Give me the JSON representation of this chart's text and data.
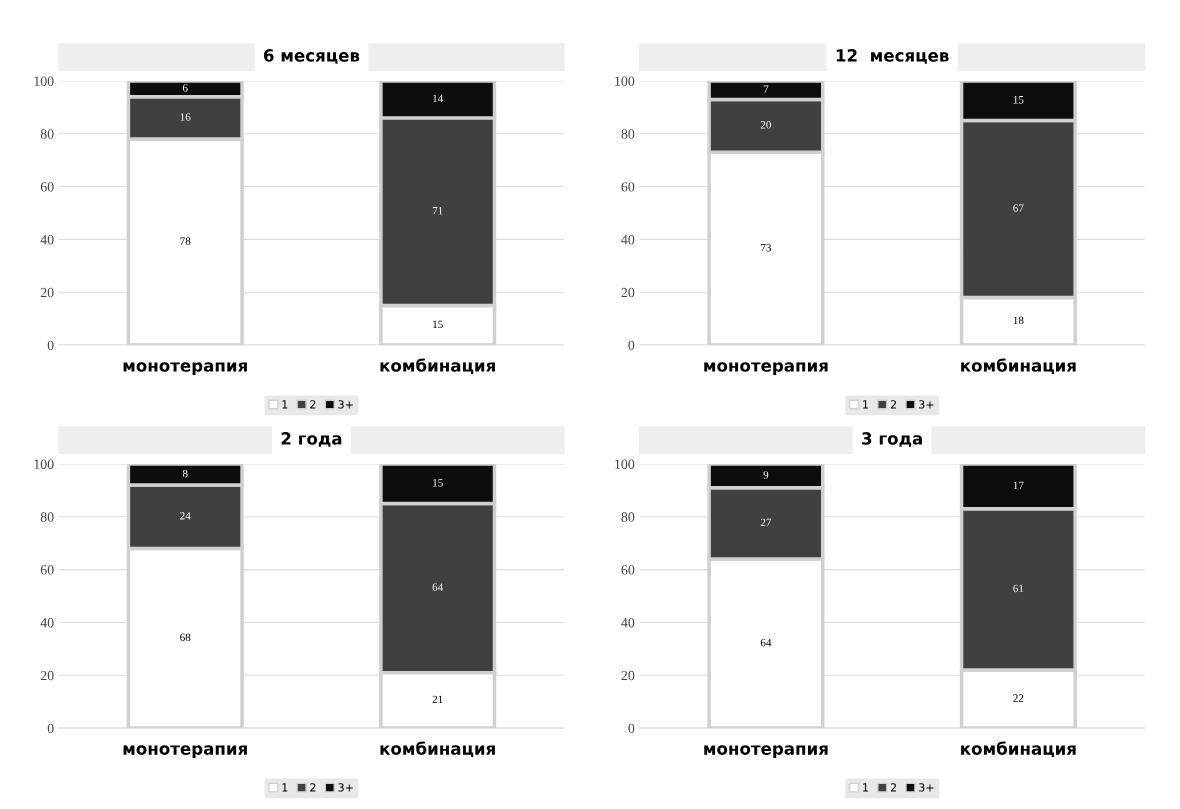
{
  "chart_data": [
    {
      "type": "bar",
      "title": "6 месяцев",
      "categories": [
        "монотерапия",
        "комбинация"
      ],
      "stacked": true,
      "ylim": [
        0,
        100
      ],
      "yticks": [
        0,
        20,
        40,
        60,
        80,
        100
      ],
      "grid": "y",
      "legend": "bottom",
      "data_labels": true,
      "series": [
        {
          "name": "1",
          "color": "#ffffff",
          "values": [
            78,
            15
          ]
        },
        {
          "name": "2",
          "color": "#404040",
          "values": [
            16,
            71
          ]
        },
        {
          "name": "3+",
          "color": "#0d0d0d",
          "values": [
            6,
            14
          ]
        }
      ]
    },
    {
      "type": "bar",
      "title": "12  месяцев",
      "categories": [
        "монотерапия",
        "комбинация"
      ],
      "stacked": true,
      "ylim": [
        0,
        100
      ],
      "yticks": [
        0,
        20,
        40,
        60,
        80,
        100
      ],
      "grid": "y",
      "legend": "bottom",
      "data_labels": true,
      "series": [
        {
          "name": "1",
          "color": "#ffffff",
          "values": [
            73,
            18
          ]
        },
        {
          "name": "2",
          "color": "#404040",
          "values": [
            20,
            67
          ]
        },
        {
          "name": "3+",
          "color": "#0d0d0d",
          "values": [
            7,
            15
          ]
        }
      ]
    },
    {
      "type": "bar",
      "title": "2 года",
      "categories": [
        "монотерапия",
        "комбинация"
      ],
      "stacked": true,
      "ylim": [
        0,
        100
      ],
      "yticks": [
        0,
        20,
        40,
        60,
        80,
        100
      ],
      "grid": "y",
      "legend": "bottom",
      "data_labels": true,
      "series": [
        {
          "name": "1",
          "color": "#ffffff",
          "values": [
            68,
            21
          ]
        },
        {
          "name": "2",
          "color": "#404040",
          "values": [
            24,
            64
          ]
        },
        {
          "name": "3+",
          "color": "#0d0d0d",
          "values": [
            8,
            15
          ]
        }
      ]
    },
    {
      "type": "bar",
      "title": "3 года",
      "categories": [
        "монотерапия",
        "комбинация"
      ],
      "stacked": true,
      "ylim": [
        0,
        100
      ],
      "yticks": [
        0,
        20,
        40,
        60,
        80,
        100
      ],
      "grid": "y",
      "legend": "bottom",
      "data_labels": true,
      "series": [
        {
          "name": "1",
          "color": "#ffffff",
          "values": [
            64,
            22
          ]
        },
        {
          "name": "2",
          "color": "#404040",
          "values": [
            27,
            61
          ]
        },
        {
          "name": "3+",
          "color": "#0d0d0d",
          "values": [
            9,
            17
          ]
        }
      ]
    }
  ]
}
